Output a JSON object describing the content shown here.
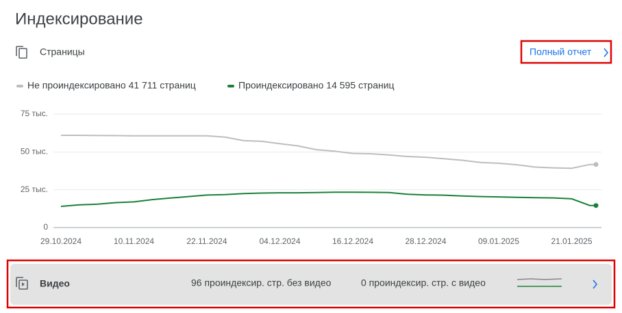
{
  "header": {
    "title": "Индексирование",
    "section": "Страницы",
    "report_link": "Полный отчет"
  },
  "chart_data": {
    "type": "line",
    "x": [
      "29.10.2024",
      "01.11.2024",
      "04.11.2024",
      "07.11.2024",
      "10.11.2024",
      "13.11.2024",
      "16.11.2024",
      "19.11.2024",
      "22.11.2024",
      "25.11.2024",
      "28.11.2024",
      "01.12.2024",
      "04.12.2024",
      "07.12.2024",
      "10.12.2024",
      "13.12.2024",
      "16.12.2024",
      "19.12.2024",
      "22.12.2024",
      "25.12.2024",
      "28.12.2024",
      "31.12.2024",
      "03.01.2025",
      "06.01.2025",
      "09.01.2025",
      "12.01.2025",
      "15.01.2025",
      "18.01.2025",
      "21.01.2025",
      "24.01.2025",
      "25.01.2025"
    ],
    "series": [
      {
        "name": "Не проиндексировано 41 711 страниц",
        "color": "#bdbdbd",
        "values": [
          61000,
          61000,
          60900,
          60800,
          60700,
          60700,
          60700,
          60700,
          60700,
          59800,
          57500,
          57000,
          55500,
          54000,
          51500,
          50500,
          49000,
          48800,
          48000,
          47000,
          46500,
          45500,
          44500,
          43000,
          42500,
          41500,
          40000,
          39500,
          39200,
          41711,
          41711
        ]
      },
      {
        "name": "Проиндексировано 14 595 страниц",
        "color": "#188038",
        "values": [
          14000,
          15000,
          15500,
          16500,
          17000,
          18500,
          19500,
          20500,
          21500,
          21800,
          22500,
          22800,
          23000,
          23000,
          23200,
          23400,
          23400,
          23300,
          23200,
          22000,
          21600,
          21400,
          20900,
          20500,
          20300,
          20000,
          19800,
          19600,
          19000,
          14595,
          14595
        ]
      }
    ],
    "xlim": [
      "29.10.2024",
      "25.01.2025"
    ],
    "xticks": [
      "29.10.2024",
      "10.11.2024",
      "22.11.2024",
      "04.12.2024",
      "16.12.2024",
      "28.12.2024",
      "09.01.2025",
      "21.01.2025"
    ],
    "ylim": [
      0,
      75000
    ],
    "yticks": [
      0,
      {
        "value": 25000,
        "label": "25 тыс."
      },
      {
        "value": 50000,
        "label": "50 тыс."
      },
      {
        "value": 75000,
        "label": "75 тыс."
      }
    ],
    "grid": true
  },
  "video_row": {
    "title": "Видео",
    "without_video": "96 проиндексир. стр. без видео",
    "with_video": "0 проиндексир. стр. с видео"
  }
}
